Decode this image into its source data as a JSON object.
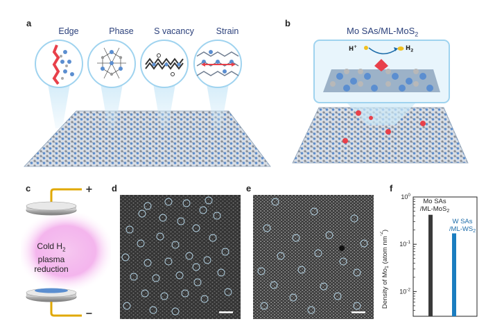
{
  "panels": {
    "a": {
      "label": "a",
      "insets": [
        "Edge",
        "Phase",
        "S vacancy",
        "Strain"
      ]
    },
    "b": {
      "label": "b",
      "title_main": "Mo SAs/ML-MoS",
      "title_sub": "2",
      "hplus_main": "H",
      "hplus_sup": "+",
      "h2_main": "H",
      "h2_sub": "2"
    },
    "c": {
      "label": "c",
      "plus": "+",
      "minus": "−",
      "plasma_line1_main": "Cold H",
      "plasma_line1_sub": "2",
      "plasma_line2": "plasma",
      "plasma_line3": "reduction"
    },
    "d": {
      "label": "d"
    },
    "e": {
      "label": "e"
    },
    "f": {
      "label": "f"
    }
  },
  "chart_data": {
    "type": "bar",
    "yscale": "log",
    "ylim": [
      0.003,
      1
    ],
    "yticks": [
      {
        "base": "10",
        "exp": "0",
        "value": 1
      },
      {
        "base": "10",
        "exp": "-1",
        "value": 0.1
      },
      {
        "base": "10",
        "exp": "-2",
        "value": 0.01
      }
    ],
    "ylabel_parts": [
      "Density of Mo",
      "1",
      " (atom nm",
      "-2",
      ")"
    ],
    "series": [
      {
        "name_l1": "Mo SAs",
        "name_l2_main": "/ML-MoS",
        "name_l2_sub": "2",
        "value": 0.42,
        "color": "#3a3a3a",
        "label_color": "#222222"
      },
      {
        "name_l1": "W SAs",
        "name_l2_main": "/ML-WS",
        "name_l2_sub": "2",
        "value": 0.17,
        "color": "#1b7dc0",
        "label_color": "#1b6ba8"
      }
    ]
  },
  "colors": {
    "mo_atom": "#5b8ed0",
    "s_atom": "#a9a9a9",
    "highlight": "#e8404a",
    "inset_border": "#9fd3ef",
    "zoom_cone": "#cde9f8",
    "plasma": "#f0a0e8"
  }
}
